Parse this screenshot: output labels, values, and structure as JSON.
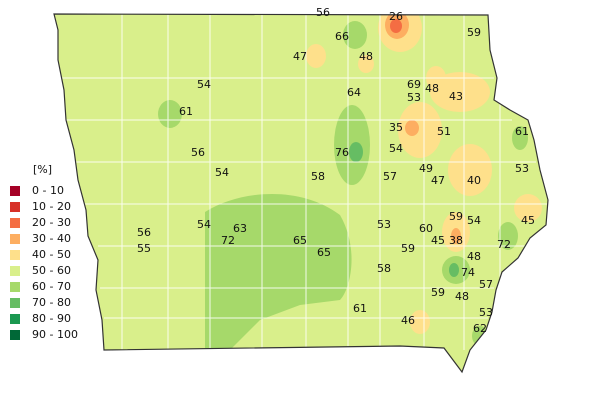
{
  "legend": {
    "unit": "[%]",
    "items": [
      {
        "label": "0 - 10",
        "color": "#a50026"
      },
      {
        "label": "10 - 20",
        "color": "#d73027"
      },
      {
        "label": "20 - 30",
        "color": "#f46d43"
      },
      {
        "label": "30 - 40",
        "color": "#fdae61"
      },
      {
        "label": "40 - 50",
        "color": "#fee08b"
      },
      {
        "label": "50 - 60",
        "color": "#d9ef8b"
      },
      {
        "label": "60 - 70",
        "color": "#a6d96a"
      },
      {
        "label": "70 - 80",
        "color": "#66bd63"
      },
      {
        "label": "80 - 90",
        "color": "#1a9850"
      },
      {
        "label": "90 - 100",
        "color": "#006837"
      }
    ]
  },
  "stations": [
    56,
    26,
    59,
    66,
    47,
    48,
    54,
    69,
    48,
    53,
    43,
    64,
    61,
    35,
    51,
    61,
    54,
    76,
    56,
    54,
    58,
    57,
    49,
    47,
    40,
    53,
    59,
    54,
    45,
    54,
    63,
    53,
    60,
    56,
    72,
    65,
    45,
    38,
    72,
    55,
    65,
    59,
    48,
    58,
    74,
    57,
    59,
    48,
    61,
    53,
    46,
    62
  ]
}
